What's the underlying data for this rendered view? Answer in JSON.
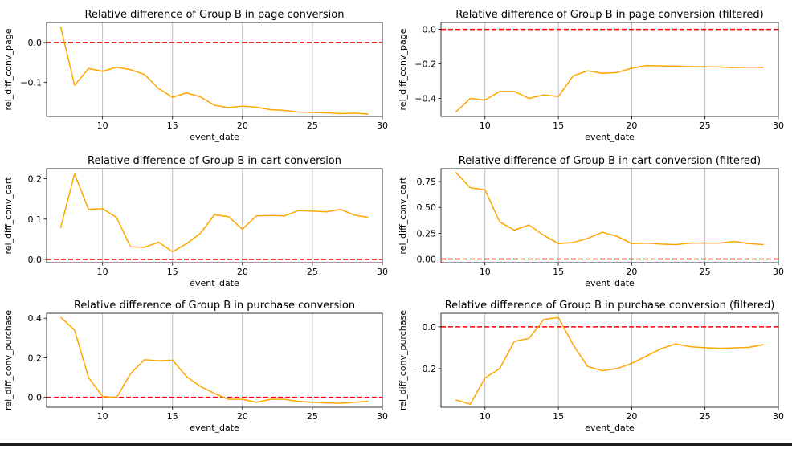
{
  "chart_data": [
    {
      "type": "line",
      "title": "Relative difference of Group B in page conversion",
      "xlabel": "event_date",
      "ylabel": "rel_diff_conv_page",
      "xlim": [
        6,
        30
      ],
      "ylim": [
        -0.185,
        0.05
      ],
      "xticks": [
        10,
        15,
        20,
        25,
        30
      ],
      "yticks": [
        0.0,
        -0.1
      ],
      "ytick_labels": [
        "0.0",
        "−0.1"
      ],
      "xgrid": true,
      "reference_line": 0,
      "series": [
        {
          "color": "#FFA500",
          "x": [
            7,
            8,
            9,
            10,
            11,
            12,
            13,
            14,
            15,
            16,
            17,
            18,
            19,
            20,
            21,
            22,
            23,
            24,
            25,
            26,
            27,
            28,
            29
          ],
          "y": [
            0.04,
            -0.107,
            -0.065,
            -0.072,
            -0.062,
            -0.068,
            -0.08,
            -0.115,
            -0.137,
            -0.126,
            -0.136,
            -0.157,
            -0.163,
            -0.159,
            -0.162,
            -0.168,
            -0.17,
            -0.174,
            -0.175,
            -0.176,
            -0.178,
            -0.177,
            -0.179
          ]
        }
      ]
    },
    {
      "type": "line",
      "title": "Relative difference of Group B in page conversion (filtered)",
      "xlabel": "event_date",
      "ylabel": "rel_diff_conv_page",
      "xlim": [
        7,
        30
      ],
      "ylim": [
        -0.505,
        0.04
      ],
      "xticks": [
        10,
        15,
        20,
        25,
        30
      ],
      "yticks": [
        0.0,
        -0.2,
        -0.4
      ],
      "ytick_labels": [
        "0.0",
        "−0.2",
        "−0.4"
      ],
      "xgrid": true,
      "reference_line": 0,
      "series": [
        {
          "color": "#FFA500",
          "x": [
            8,
            9,
            10,
            11,
            12,
            13,
            14,
            15,
            16,
            17,
            18,
            19,
            20,
            21,
            22,
            23,
            24,
            25,
            26,
            27,
            28,
            29
          ],
          "y": [
            -0.48,
            -0.4,
            -0.41,
            -0.36,
            -0.36,
            -0.4,
            -0.38,
            -0.39,
            -0.27,
            -0.24,
            -0.255,
            -0.25,
            -0.225,
            -0.21,
            -0.212,
            -0.213,
            -0.216,
            -0.217,
            -0.218,
            -0.222,
            -0.219,
            -0.22
          ]
        }
      ]
    },
    {
      "type": "line",
      "title": "Relative difference of Group B in cart conversion",
      "xlabel": "event_date",
      "ylabel": "rel_diff_conv_cart",
      "xlim": [
        6,
        30
      ],
      "ylim": [
        -0.008,
        0.225
      ],
      "xticks": [
        10,
        15,
        20,
        25,
        30
      ],
      "yticks": [
        0.0,
        0.1,
        0.2
      ],
      "ytick_labels": [
        "0.0",
        "0.1",
        "0.2"
      ],
      "xgrid": true,
      "reference_line": 0,
      "series": [
        {
          "color": "#FFA500",
          "x": [
            7,
            8,
            9,
            10,
            11,
            12,
            13,
            14,
            15,
            16,
            17,
            18,
            19,
            20,
            21,
            22,
            23,
            24,
            25,
            26,
            27,
            28,
            29
          ],
          "y": [
            0.078,
            0.212,
            0.124,
            0.126,
            0.104,
            0.031,
            0.03,
            0.043,
            0.019,
            0.039,
            0.065,
            0.111,
            0.106,
            0.075,
            0.108,
            0.109,
            0.108,
            0.121,
            0.12,
            0.118,
            0.124,
            0.11,
            0.104
          ]
        }
      ]
    },
    {
      "type": "line",
      "title": "Relative difference of Group B in cart conversion (filtered)",
      "xlabel": "event_date",
      "ylabel": "rel_diff_conv_cart",
      "xlim": [
        7,
        30
      ],
      "ylim": [
        -0.035,
        0.875
      ],
      "xticks": [
        10,
        15,
        20,
        25,
        30
      ],
      "yticks": [
        0.0,
        0.25,
        0.5,
        0.75
      ],
      "ytick_labels": [
        "0.00",
        "0.25",
        "0.50",
        "0.75"
      ],
      "xgrid": true,
      "reference_line": 0,
      "series": [
        {
          "color": "#FFA500",
          "x": [
            8,
            9,
            10,
            11,
            12,
            13,
            14,
            15,
            16,
            17,
            18,
            19,
            20,
            21,
            22,
            23,
            24,
            25,
            26,
            27,
            28,
            29
          ],
          "y": [
            0.84,
            0.69,
            0.67,
            0.36,
            0.28,
            0.33,
            0.23,
            0.15,
            0.16,
            0.2,
            0.26,
            0.22,
            0.15,
            0.155,
            0.145,
            0.14,
            0.155,
            0.155,
            0.155,
            0.17,
            0.15,
            0.14
          ]
        }
      ]
    },
    {
      "type": "line",
      "title": "Relative difference of Group B in purchase conversion",
      "xlabel": "event_date",
      "ylabel": "rel_diff_conv_purchase",
      "xlim": [
        6,
        30
      ],
      "ylim": [
        -0.05,
        0.425
      ],
      "xticks": [
        10,
        15,
        20,
        25,
        30
      ],
      "yticks": [
        0.0,
        0.2,
        0.4
      ],
      "ytick_labels": [
        "0.0",
        "0.2",
        "0.4"
      ],
      "xgrid": true,
      "reference_line": 0,
      "series": [
        {
          "color": "#FFA500",
          "x": [
            7,
            8,
            9,
            10,
            11,
            12,
            13,
            14,
            15,
            16,
            17,
            18,
            19,
            20,
            21,
            22,
            23,
            24,
            25,
            26,
            27,
            28,
            29
          ],
          "y": [
            0.405,
            0.34,
            0.1,
            0.005,
            -0.002,
            0.12,
            0.19,
            0.185,
            0.188,
            0.105,
            0.055,
            0.02,
            -0.01,
            -0.01,
            -0.025,
            -0.01,
            -0.01,
            -0.02,
            -0.025,
            -0.028,
            -0.03,
            -0.025,
            -0.02
          ]
        }
      ]
    },
    {
      "type": "line",
      "title": "Relative difference of Group B in purchase conversion (filtered)",
      "xlabel": "event_date",
      "ylabel": "rel_diff_conv_purchase",
      "xlim": [
        7,
        30
      ],
      "ylim": [
        -0.385,
        0.065
      ],
      "xticks": [
        10,
        15,
        20,
        25,
        30
      ],
      "yticks": [
        0.0,
        -0.2
      ],
      "ytick_labels": [
        "0.0",
        "−0.2"
      ],
      "xgrid": true,
      "reference_line": 0,
      "series": [
        {
          "color": "#FFA500",
          "x": [
            8,
            9,
            10,
            11,
            12,
            13,
            14,
            15,
            16,
            17,
            18,
            19,
            20,
            21,
            22,
            23,
            24,
            25,
            26,
            27,
            28,
            29
          ],
          "y": [
            -0.35,
            -0.37,
            -0.245,
            -0.2,
            -0.07,
            -0.055,
            0.035,
            0.045,
            -0.085,
            -0.19,
            -0.21,
            -0.2,
            -0.175,
            -0.14,
            -0.105,
            -0.082,
            -0.095,
            -0.1,
            -0.103,
            -0.101,
            -0.098,
            -0.085
          ]
        }
      ]
    }
  ]
}
